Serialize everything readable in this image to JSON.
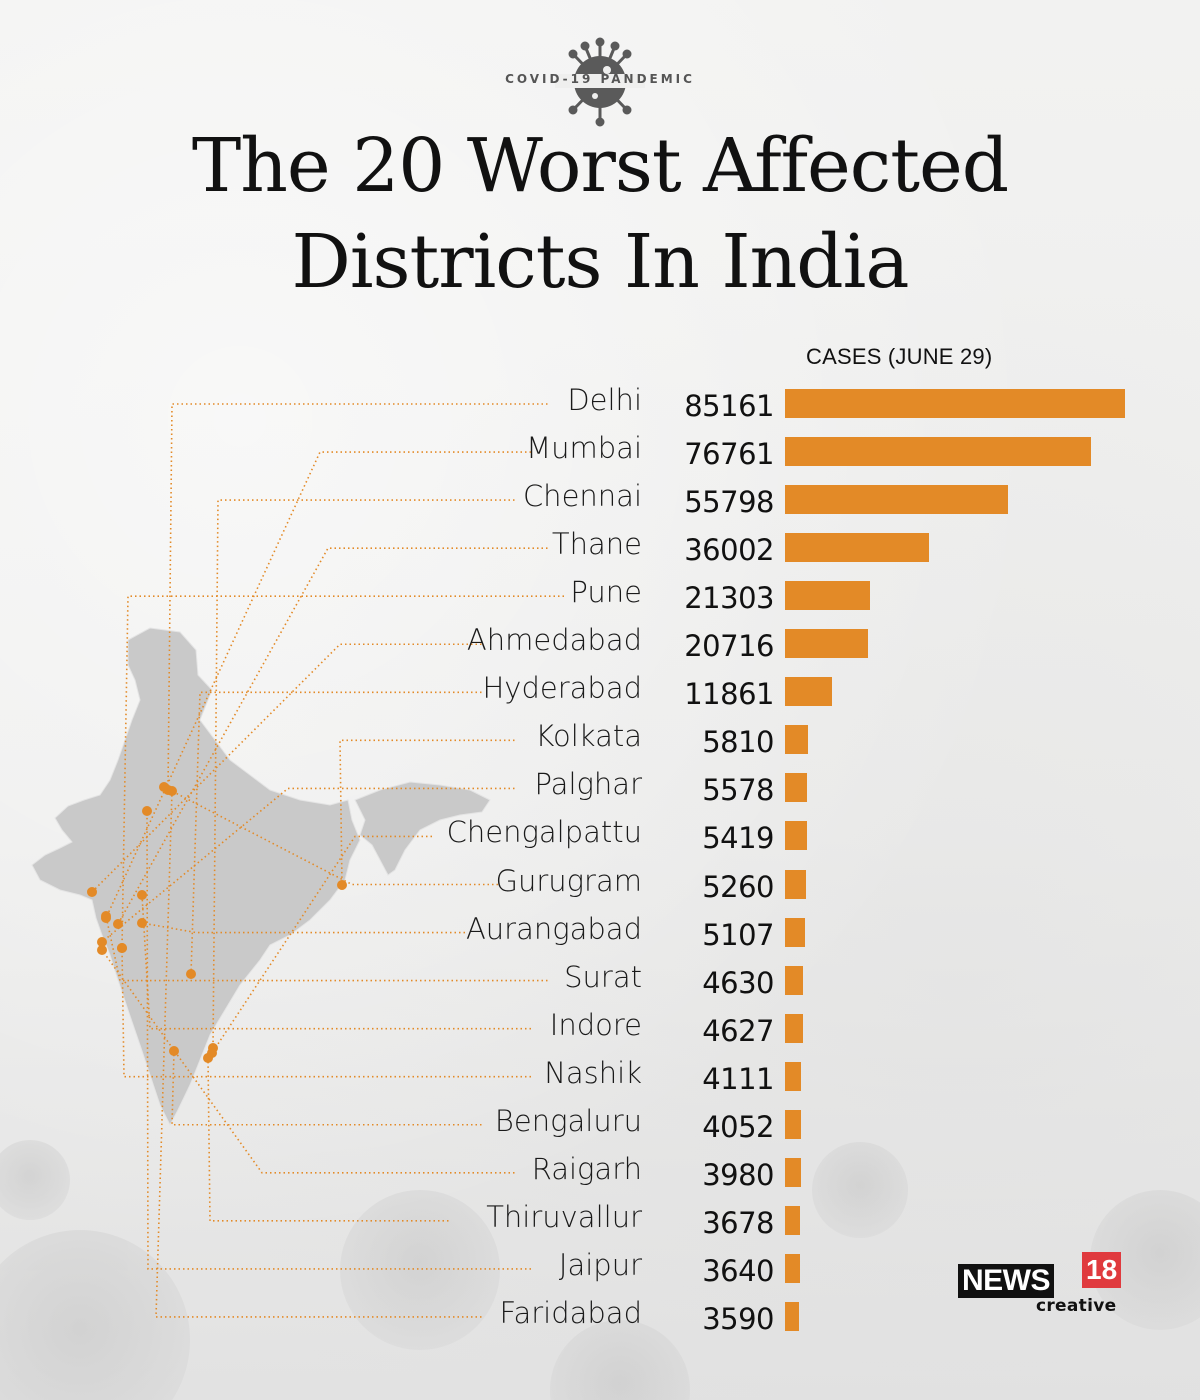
{
  "header": {
    "kicker": "COVID-19 PANDEMIC",
    "kicker_icon": "virus-icon",
    "title_line1": "The 20 Worst Affected",
    "title_line2": "Districts In India"
  },
  "colors": {
    "bar": "#e38a27",
    "leader_line": "#e38a27",
    "map_fill": "#c9c9c9",
    "text": "#111111",
    "logo_red": "#e03a3e"
  },
  "chart_data": {
    "type": "bar",
    "orientation": "horizontal",
    "title": "The 20 Worst Affected Districts In India",
    "xlabel": "CASES (JUNE 29)",
    "ylabel": "",
    "categories": [
      "Delhi",
      "Mumbai",
      "Chennai",
      "Thane",
      "Pune",
      "Ahmedabad",
      "Hyderabad",
      "Kolkata",
      "Palghar",
      "Chengalpattu",
      "Gurugram",
      "Aurangabad",
      "Surat",
      "Indore",
      "Nashik",
      "Bengaluru",
      "Raigarh",
      "Thiruvallur",
      "Jaipur",
      "Faridabad"
    ],
    "values": [
      85161,
      76761,
      55798,
      36002,
      21303,
      20716,
      11861,
      5810,
      5578,
      5419,
      5260,
      5107,
      4630,
      4627,
      4111,
      4052,
      3980,
      3678,
      3640,
      3590
    ],
    "xlim": [
      0,
      85161
    ],
    "grid": false,
    "legend": "none",
    "data_labels": true
  },
  "map": {
    "description": "Map of India with orange dots marking each district, connected to labels by dotted leader lines",
    "icon": "india-map"
  },
  "branding": {
    "news": "NEWS",
    "number": "18",
    "sub": "creative"
  }
}
